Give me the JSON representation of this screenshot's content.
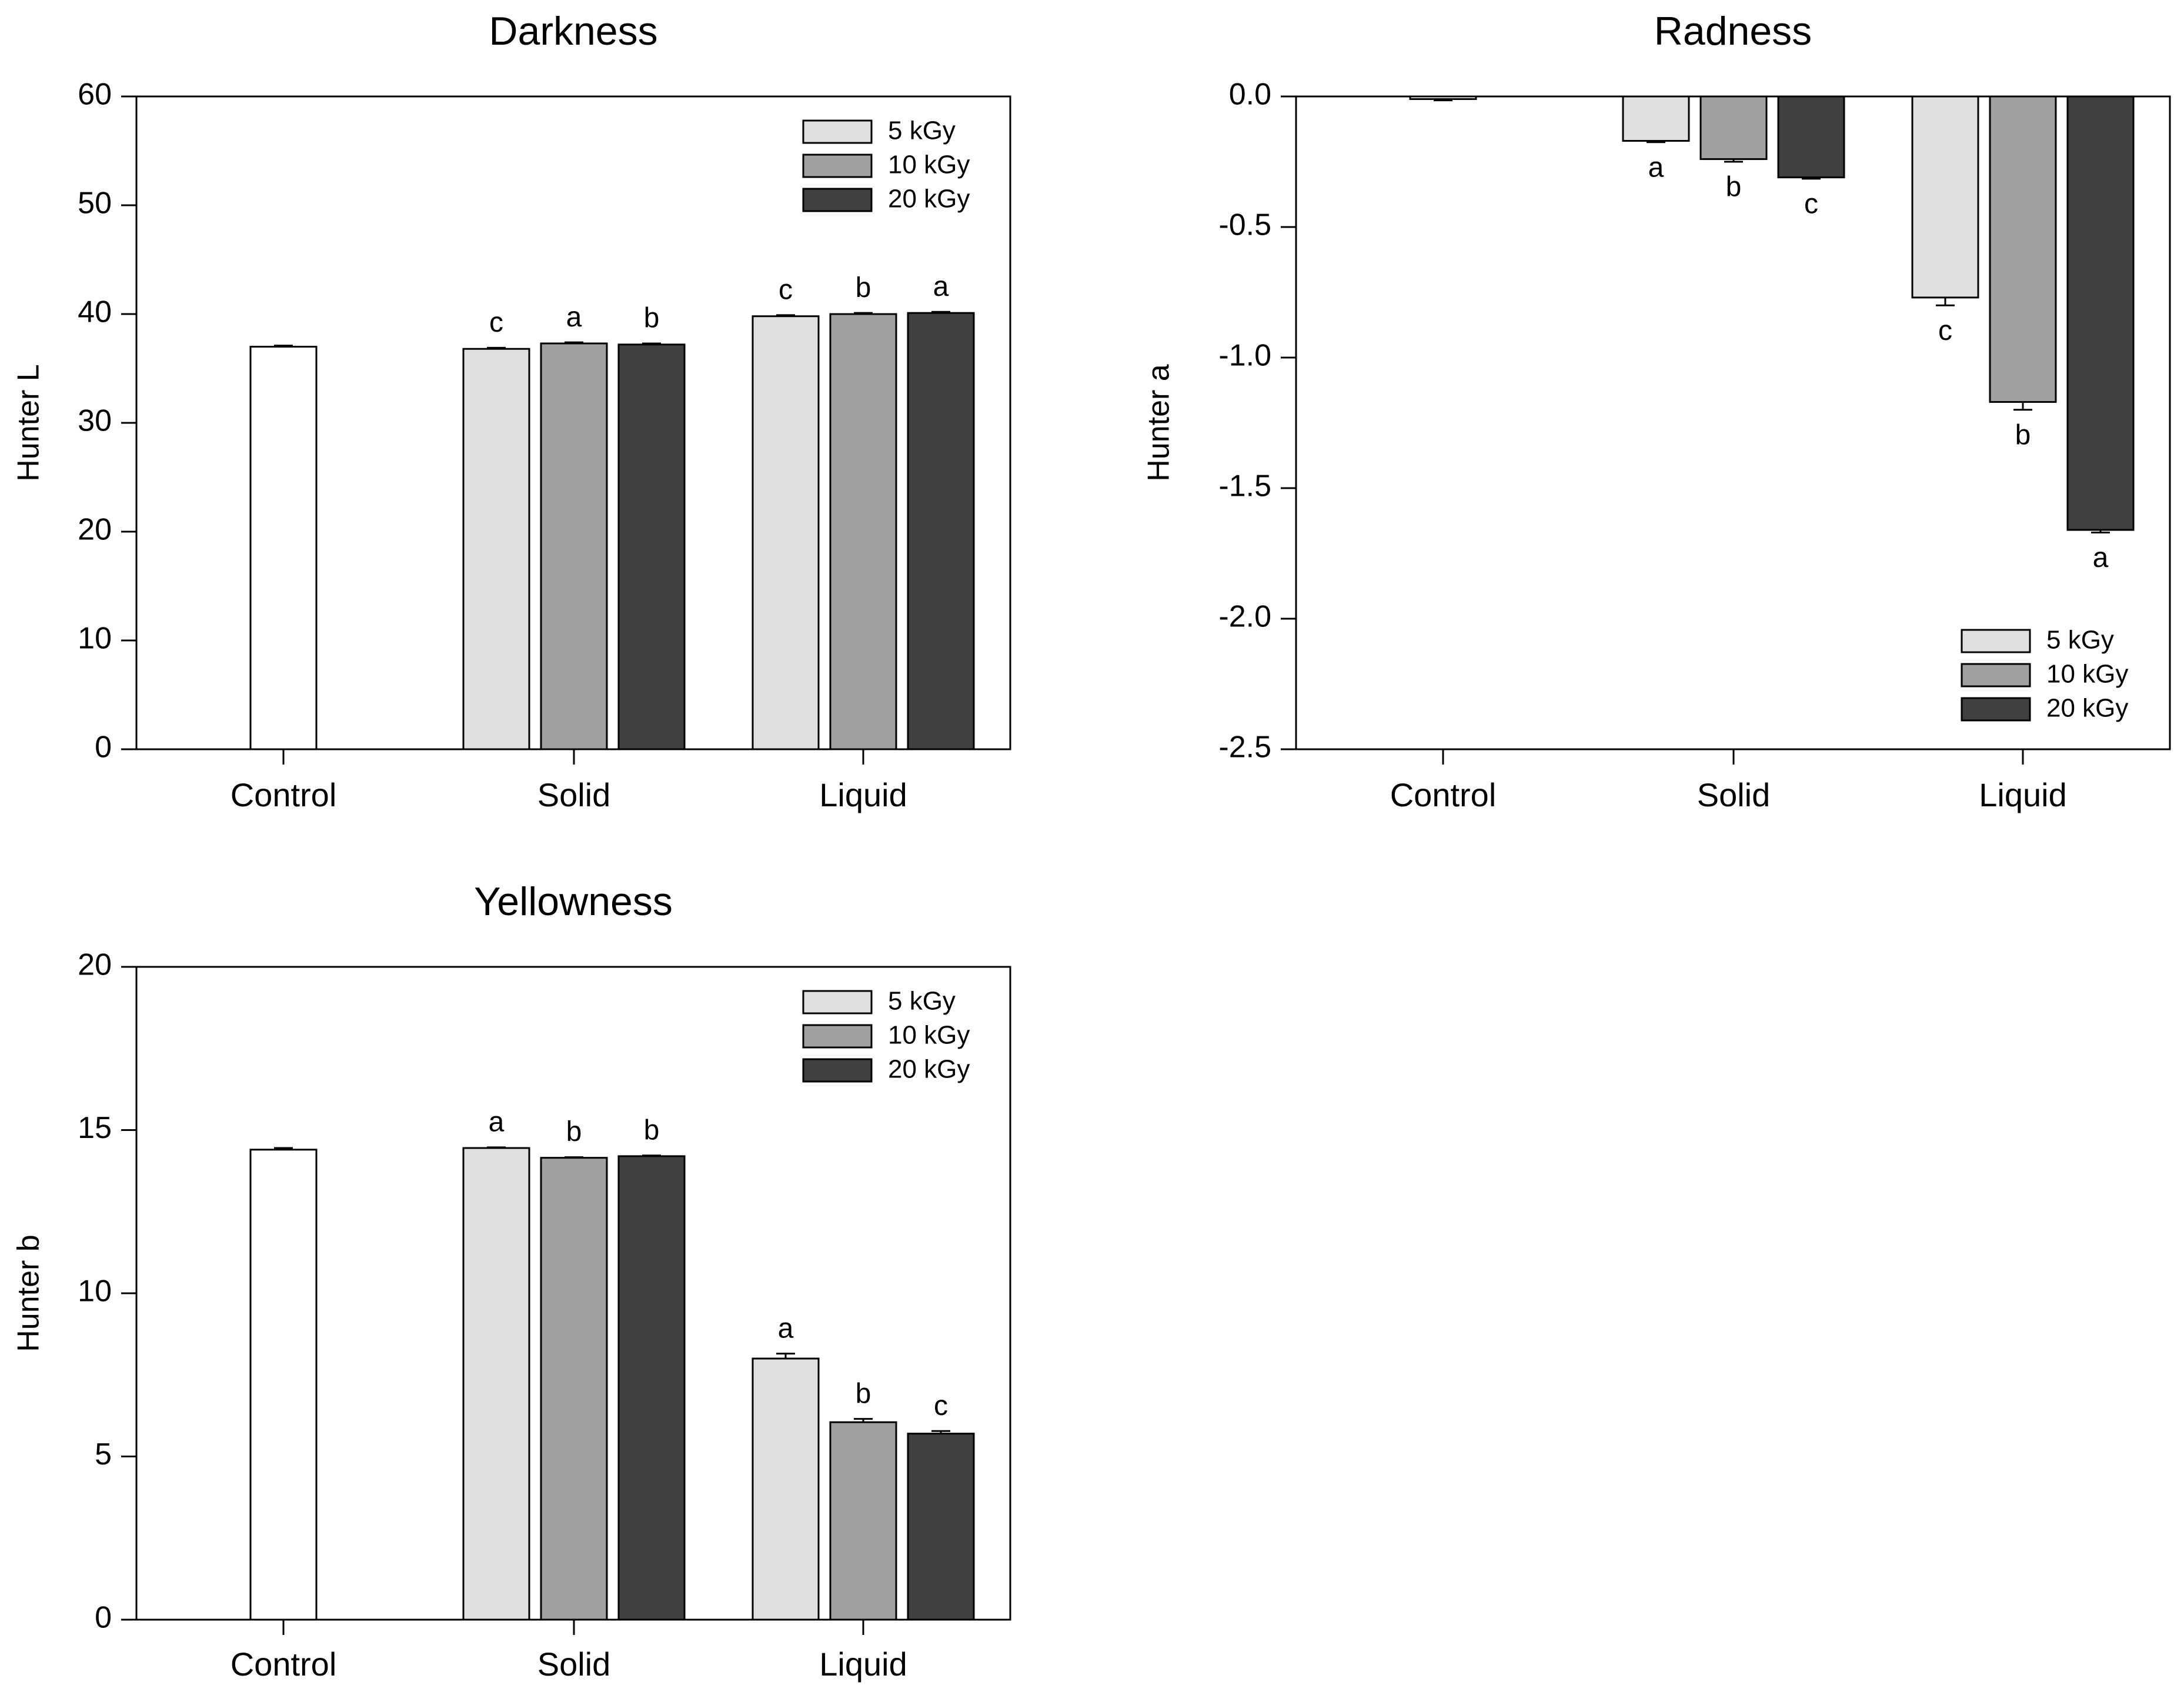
{
  "chart_data": [
    {
      "id": "darkness",
      "type": "bar",
      "title": "Darkness",
      "xlabel": "",
      "ylabel": "Hunter L",
      "ylim": [
        0,
        60
      ],
      "yticks": [
        0,
        10,
        20,
        30,
        40,
        50,
        60
      ],
      "ytick_labels": [
        "0",
        "10",
        "20",
        "30",
        "40",
        "50",
        "60"
      ],
      "grid": false,
      "legend_position": "top-right",
      "categories": [
        "Control",
        "Solid",
        "Liquid"
      ],
      "control": {
        "name": "Control",
        "value": 37.0,
        "error": 0.1,
        "color": "#ffffff"
      },
      "series": [
        {
          "name": "5 kGy",
          "color": "#e0e0e0",
          "values": [
            null,
            36.8,
            39.8
          ],
          "errors": [
            null,
            0.1,
            0.1
          ],
          "letters": [
            null,
            "c",
            "c"
          ]
        },
        {
          "name": "10 kGy",
          "color": "#a0a0a0",
          "values": [
            null,
            37.3,
            40.0
          ],
          "errors": [
            null,
            0.1,
            0.1
          ],
          "letters": [
            null,
            "a",
            "b"
          ]
        },
        {
          "name": "20 kGy",
          "color": "#404040",
          "values": [
            null,
            37.2,
            40.1
          ],
          "errors": [
            null,
            0.1,
            0.1
          ],
          "letters": [
            null,
            "b",
            "a"
          ]
        }
      ]
    },
    {
      "id": "radness",
      "type": "bar",
      "title": "Radness",
      "xlabel": "",
      "ylabel": "Hunter a",
      "ylim": [
        -2.5,
        0.0
      ],
      "yticks": [
        0.0,
        -0.5,
        -1.0,
        -1.5,
        -2.0,
        -2.5
      ],
      "ytick_labels": [
        "0.0",
        "-0.5",
        "-1.0",
        "-1.5",
        "-2.0",
        "-2.5"
      ],
      "grid": false,
      "legend_position": "bottom-right",
      "categories": [
        "Control",
        "Solid",
        "Liquid"
      ],
      "control": {
        "name": "Control",
        "value": -0.01,
        "error": 0.005,
        "color": "#ffffff"
      },
      "series": [
        {
          "name": "5 kGy",
          "color": "#e0e0e0",
          "values": [
            null,
            -0.17,
            -0.77
          ],
          "errors": [
            null,
            0.005,
            0.03
          ],
          "letters": [
            null,
            "a",
            "c"
          ]
        },
        {
          "name": "10 kGy",
          "color": "#a0a0a0",
          "values": [
            null,
            -0.24,
            -1.17
          ],
          "errors": [
            null,
            0.01,
            0.03
          ],
          "letters": [
            null,
            "b",
            "b"
          ]
        },
        {
          "name": "20 kGy",
          "color": "#404040",
          "values": [
            null,
            -0.31,
            -1.66
          ],
          "errors": [
            null,
            0.005,
            0.01
          ],
          "letters": [
            null,
            "c",
            "a"
          ]
        }
      ]
    },
    {
      "id": "yellowness",
      "type": "bar",
      "title": "Yellowness",
      "xlabel": "",
      "ylabel": "Hunter b",
      "ylim": [
        0,
        20
      ],
      "yticks": [
        0,
        5,
        10,
        15,
        20
      ],
      "ytick_labels": [
        "0",
        "5",
        "10",
        "15",
        "20"
      ],
      "grid": false,
      "legend_position": "top-right",
      "categories": [
        "Control",
        "Solid",
        "Liquid"
      ],
      "control": {
        "name": "Control",
        "value": 14.4,
        "error": 0.05,
        "color": "#ffffff"
      },
      "series": [
        {
          "name": "5 kGy",
          "color": "#e0e0e0",
          "values": [
            null,
            14.45,
            8.0
          ],
          "errors": [
            null,
            0.02,
            0.15
          ],
          "letters": [
            null,
            "a",
            "a"
          ]
        },
        {
          "name": "10 kGy",
          "color": "#a0a0a0",
          "values": [
            null,
            14.15,
            6.05
          ],
          "errors": [
            null,
            0.02,
            0.1
          ],
          "letters": [
            null,
            "b",
            "b"
          ]
        },
        {
          "name": "20 kGy",
          "color": "#404040",
          "values": [
            null,
            14.2,
            5.7
          ],
          "errors": [
            null,
            0.02,
            0.08
          ],
          "letters": [
            null,
            "b",
            "c"
          ]
        }
      ]
    }
  ]
}
